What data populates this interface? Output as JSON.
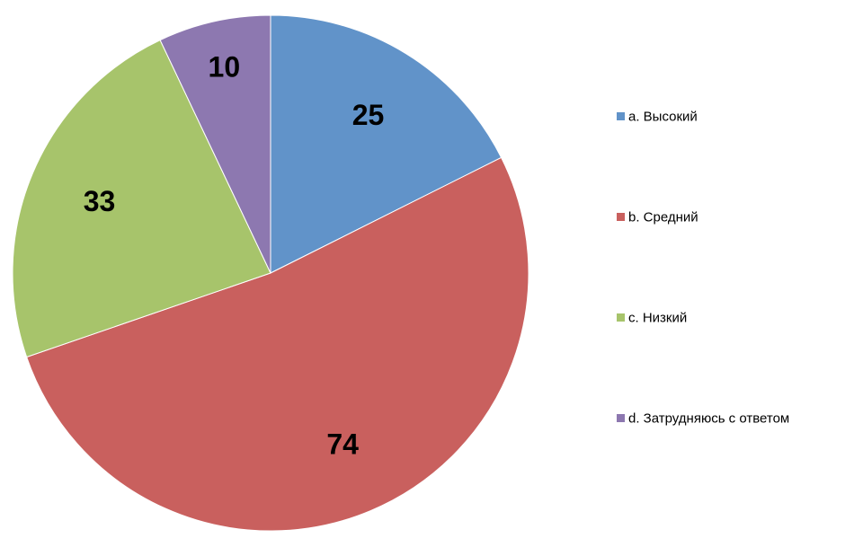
{
  "chart_data": {
    "type": "pie",
    "categories": [
      "a. Высокий",
      "b. Средний",
      "c. Низкий",
      "d. Затрудняюсь с ответом"
    ],
    "values": [
      25,
      74,
      33,
      10
    ],
    "colors": [
      "#6193c9",
      "#c9605e",
      "#a7c46b",
      "#8d78b0"
    ],
    "data_labels": [
      "25",
      "74",
      "33",
      "10"
    ],
    "start_angle_deg": 0,
    "direction": "clockwise",
    "legend_position": "right",
    "title": ""
  }
}
